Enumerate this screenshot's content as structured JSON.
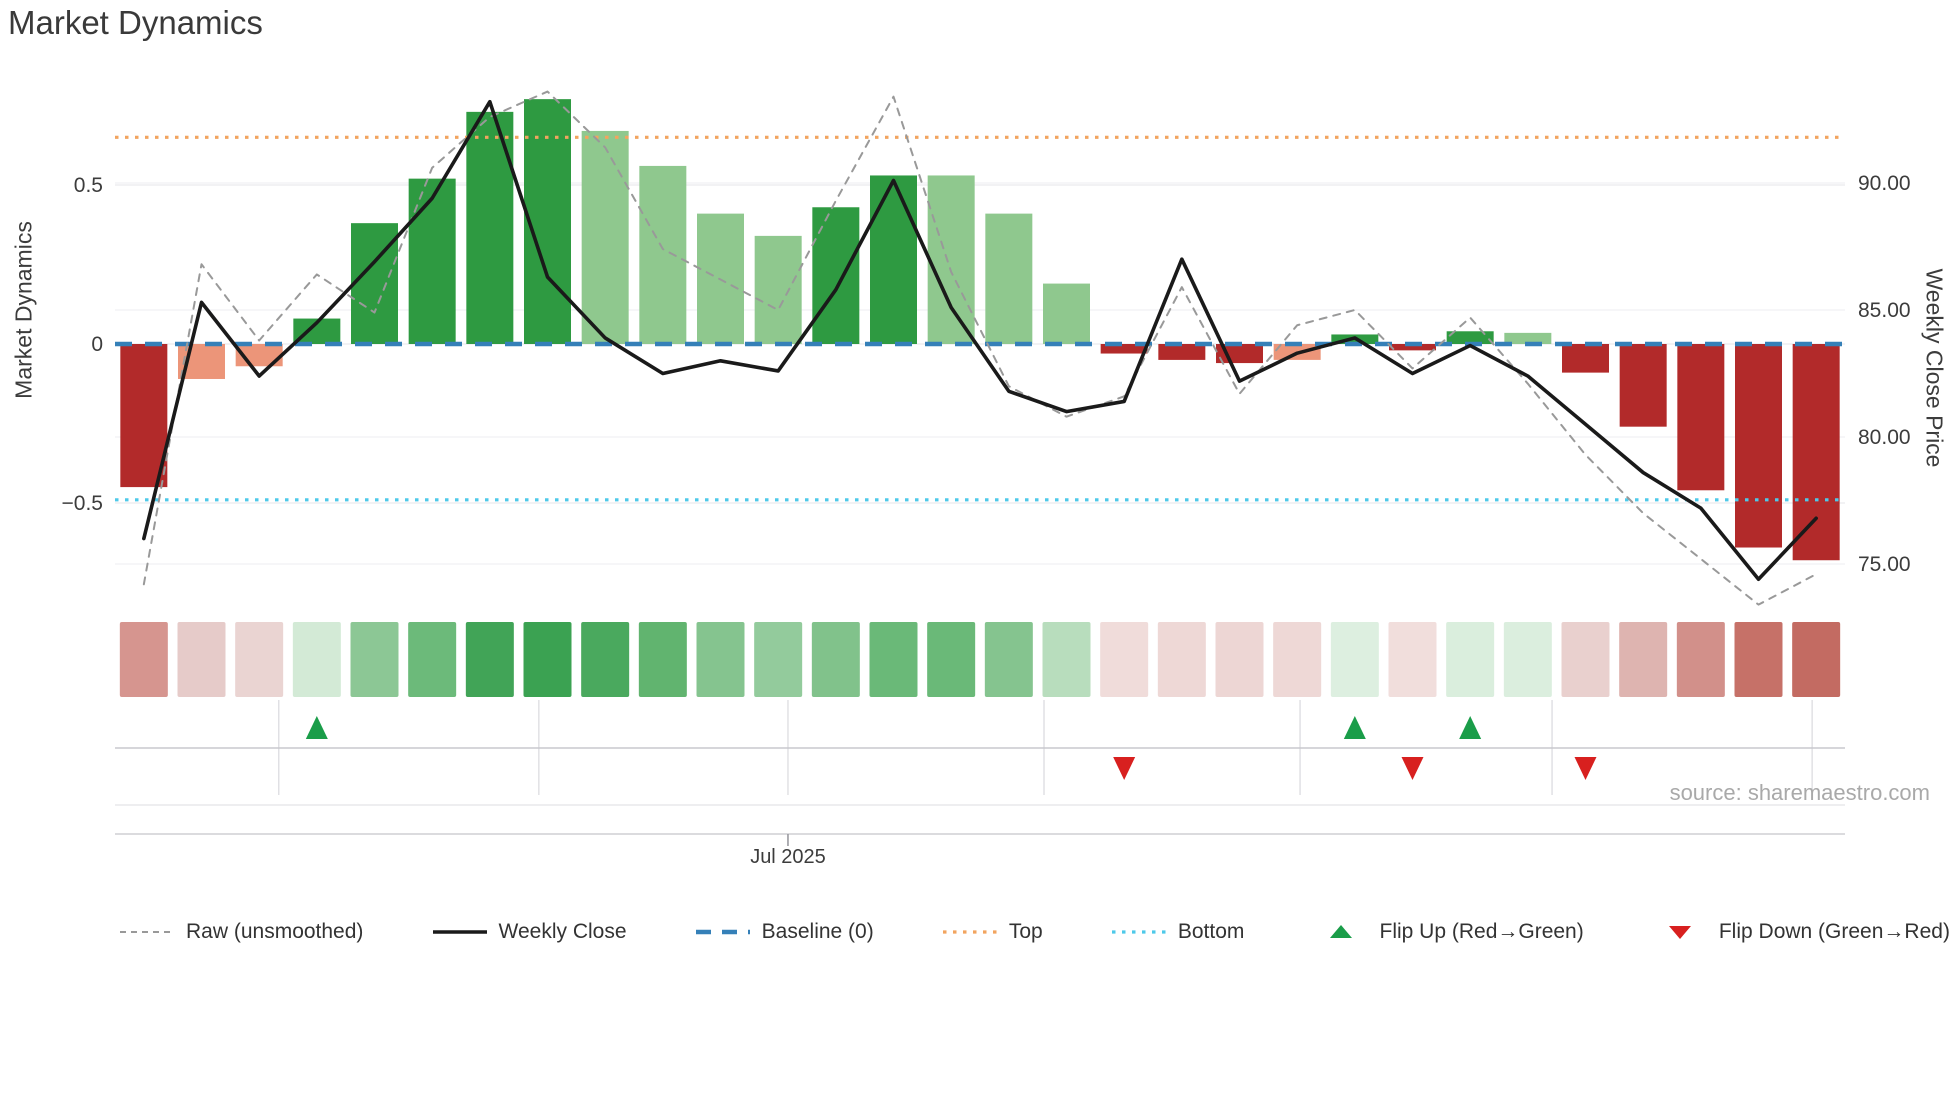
{
  "title": "Market Dynamics",
  "source": "source: sharemaestro.com",
  "axes": {
    "left": {
      "title": "Market Dynamics",
      "ticks": [
        {
          "value": 0.5,
          "label": "0.5"
        },
        {
          "value": 0,
          "label": "0"
        },
        {
          "value": -0.5,
          "label": "−0.5"
        }
      ]
    },
    "right": {
      "title": "Weekly Close Price",
      "ticks": [
        {
          "value": 90,
          "label": "90.00"
        },
        {
          "value": 85,
          "label": "85.00"
        },
        {
          "value": 80,
          "label": "80.00"
        },
        {
          "value": 75,
          "label": "75.00"
        }
      ]
    },
    "x": {
      "tick_label": "Jul 2025"
    }
  },
  "legend": [
    {
      "label": "Raw (unsmoothed)",
      "marker": "dash",
      "color": "#999999"
    },
    {
      "label": "Weekly Close",
      "marker": "solid",
      "color": "#1a1a1a"
    },
    {
      "label": "Baseline (0)",
      "marker": "longdash",
      "color": "#3580b8"
    },
    {
      "label": "Top",
      "marker": "dot",
      "color": "#f2a45f"
    },
    {
      "label": "Bottom",
      "marker": "dot",
      "color": "#4ec9e9"
    },
    {
      "label": "Flip Up (Red→Green)",
      "marker": "tri-up",
      "color": "#1a9d49"
    },
    {
      "label": "Flip Down (Green→Red)",
      "marker": "tri-down",
      "color": "#d8201f"
    }
  ],
  "chart_data": {
    "type": "combo",
    "weeks": 30,
    "bar_series": {
      "name": "Market Dynamics",
      "type": "bar",
      "axis": "left",
      "ylim": [
        -0.85,
        0.9
      ],
      "values": [
        -0.45,
        -0.11,
        -0.07,
        0.08,
        0.38,
        0.52,
        0.73,
        0.77,
        0.67,
        0.56,
        0.41,
        0.34,
        0.43,
        0.53,
        0.53,
        0.41,
        0.19,
        -0.03,
        -0.05,
        -0.06,
        -0.05,
        0.03,
        -0.02,
        0.04,
        0.035,
        -0.09,
        -0.26,
        -0.46,
        -0.64,
        -0.68
      ],
      "colors": [
        "#b22a2a",
        "#ec9579",
        "#ec9579",
        "#2e9a41",
        "#2e9a41",
        "#2e9a41",
        "#2e9a41",
        "#2e9a41",
        "#8fc88e",
        "#8fc88e",
        "#8fc88e",
        "#8fc88e",
        "#2e9a41",
        "#2e9a41",
        "#8fc88e",
        "#8fc88e",
        "#8fc88e",
        "#b22a2a",
        "#b22a2a",
        "#b22a2a",
        "#ec9579",
        "#2e9a41",
        "#b22a2a",
        "#2e9a41",
        "#8fc88e",
        "#b22a2a",
        "#b22a2a",
        "#b22a2a",
        "#b22a2a",
        "#b22a2a"
      ]
    },
    "line_series": [
      {
        "name": "Raw (unsmoothed)",
        "type": "line",
        "style": "dashed",
        "axis": "right",
        "color": "#999999",
        "values": [
          74.2,
          86.8,
          83.8,
          86.4,
          84.9,
          90.6,
          92.6,
          93.6,
          91.4,
          87.4,
          86.2,
          85.0,
          89.3,
          93.4,
          86.5,
          82.0,
          80.8,
          81.6,
          85.9,
          81.7,
          84.4,
          85.0,
          82.7,
          84.7,
          82.1,
          79.3,
          77.0,
          75.2,
          73.4,
          74.6
        ]
      },
      {
        "name": "Weekly Close",
        "type": "line",
        "style": "solid",
        "axis": "right",
        "color": "#1a1a1a",
        "values": [
          76.0,
          85.3,
          82.4,
          84.5,
          86.9,
          89.4,
          93.2,
          86.3,
          83.9,
          82.5,
          83.0,
          82.6,
          85.8,
          90.1,
          85.1,
          81.8,
          81.0,
          81.4,
          87.0,
          82.2,
          83.3,
          83.9,
          82.5,
          83.6,
          82.4,
          80.5,
          78.6,
          77.2,
          74.4,
          76.8
        ]
      }
    ],
    "reference_lines": [
      {
        "name": "Baseline (0)",
        "value": 0,
        "style": "longdash",
        "color": "#3580b8"
      },
      {
        "name": "Top",
        "value": 0.65,
        "style": "dot",
        "color": "#f2a45f"
      },
      {
        "name": "Bottom",
        "value": -0.49,
        "style": "dot",
        "color": "#4ec9e9"
      }
    ],
    "heatmap_colors": [
      "#d6958f",
      "#e6cbc9",
      "#ead4d2",
      "#d3ead6",
      "#8cc795",
      "#6cba7a",
      "#41a457",
      "#3ba252",
      "#4aa95e",
      "#61b46f",
      "#85c48f",
      "#93cb9c",
      "#81c28b",
      "#6ab978",
      "#6ab978",
      "#85c48f",
      "#b8ddbd",
      "#f0dcda",
      "#eed8d6",
      "#edd6d4",
      "#eed8d6",
      "#ddefe0",
      "#f1dedc",
      "#daeedd",
      "#dbeede",
      "#e9d0ce",
      "#deb4b0",
      "#d2908a",
      "#c67168",
      "#c36b62"
    ],
    "flip_up_weeks": [
      4,
      22,
      24
    ],
    "flip_down_weeks": [
      18,
      23,
      26
    ],
    "month_gridline_weeks": [
      3.34,
      7.85,
      12.17,
      16.61,
      21.05,
      25.42,
      29.93
    ],
    "x_tick": {
      "week": 12.17,
      "label": "Jul 2025"
    },
    "ylim_right": [
      73,
      94.5
    ],
    "grid": true,
    "legend_position": "bottom"
  }
}
